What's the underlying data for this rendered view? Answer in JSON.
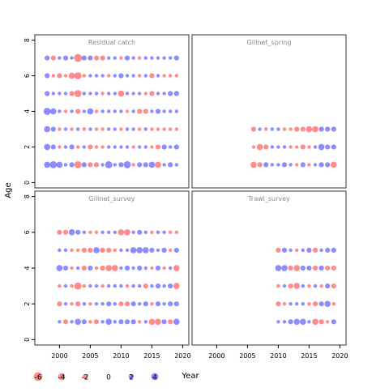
{
  "chart_data": {
    "type": "scatter",
    "xlabel": "Year",
    "ylabel": "Age",
    "xlim": [
      1996,
      2021
    ],
    "ylim": [
      -0.3,
      8.3
    ],
    "xticks": [
      "2000",
      "2005",
      "2010",
      "2015",
      "2020"
    ],
    "yticks": [
      "0",
      "2",
      "4",
      "6",
      "8"
    ],
    "colors": {
      "positive": "#4040ff",
      "negative": "#ff4040",
      "frame": "#333333",
      "panel_title": "#888888"
    },
    "legend": {
      "values": [
        -6,
        -4,
        -2,
        0,
        2,
        4
      ],
      "labels": [
        "-6",
        "-4",
        "-2",
        "0",
        "2",
        "4"
      ]
    },
    "panels": [
      {
        "title": "Residual catch",
        "years": [
          1998,
          1999,
          2000,
          2001,
          2002,
          2003,
          2004,
          2005,
          2006,
          2007,
          2008,
          2009,
          2010,
          2011,
          2012,
          2013,
          2014,
          2015,
          2016,
          2017,
          2018,
          2019
        ],
        "ages": [
          1,
          2,
          3,
          4,
          5,
          6,
          7
        ],
        "residuals": [
          [
            3,
            4,
            3,
            1,
            2,
            -4,
            2,
            -2,
            -2,
            1,
            4,
            1,
            2,
            4,
            -1,
            2,
            2,
            3,
            -3,
            1,
            2,
            1
          ],
          [
            3,
            2,
            -1,
            1,
            2,
            -1,
            1,
            -2,
            -1,
            -1,
            1,
            1,
            1,
            1,
            -1,
            1,
            1,
            -1,
            -2,
            2,
            1,
            2
          ],
          [
            3,
            2,
            -1,
            1,
            -1,
            1,
            -1,
            1,
            -1,
            -1,
            1,
            1,
            -1,
            1,
            1,
            -1,
            1,
            -1,
            -1,
            -1,
            -1,
            -1
          ],
          [
            4,
            3,
            1,
            -1,
            1,
            -2,
            1,
            3,
            -1,
            1,
            1,
            1,
            1,
            -1,
            1,
            -2,
            -2,
            1,
            2,
            1,
            1,
            1
          ],
          [
            2,
            1,
            1,
            1,
            -2,
            -4,
            1,
            1,
            1,
            -1,
            1,
            1,
            -3,
            1,
            1,
            1,
            -1,
            -2,
            1,
            1,
            2,
            2
          ],
          [
            2,
            -1,
            -2,
            -1,
            -3,
            -4,
            -1,
            1,
            1,
            1,
            -1,
            1,
            2,
            1,
            1,
            -1,
            1,
            -2,
            1,
            -1,
            -1,
            -1
          ],
          [
            2,
            -2,
            1,
            2,
            1,
            -5,
            2,
            2,
            -2,
            -2,
            1,
            1,
            -1,
            2,
            1,
            -1,
            1,
            1,
            1,
            1,
            1,
            2
          ]
        ]
      },
      {
        "title": "Gillnet_spring",
        "years": [
          2006,
          2007,
          2008,
          2009,
          2010,
          2011,
          2012,
          2013,
          2014,
          2015,
          2016,
          2017,
          2018,
          2019
        ],
        "ages": [
          1,
          2,
          3
        ],
        "residuals": [
          [
            -3,
            -2,
            2,
            1,
            1,
            2,
            1,
            -1,
            2,
            -1,
            1,
            2,
            2,
            -3
          ],
          [
            -1,
            -3,
            -2,
            1,
            1,
            1,
            -1,
            -1,
            -2,
            -1,
            1,
            3,
            2,
            2
          ],
          [
            -2,
            1,
            -1,
            1,
            1,
            -1,
            -1,
            -2,
            -2,
            -3,
            -3,
            2,
            2,
            2
          ]
        ]
      },
      {
        "title": "Gillnet_survey",
        "years": [
          2000,
          2001,
          2002,
          2003,
          2004,
          2005,
          2006,
          2007,
          2008,
          2009,
          2010,
          2011,
          2012,
          2013,
          2014,
          2015,
          2016,
          2017,
          2018,
          2019
        ],
        "ages": [
          1,
          2,
          3,
          4,
          5,
          6
        ],
        "residuals": [
          [
            1,
            -2,
            1,
            3,
            2,
            -1,
            -2,
            1,
            3,
            1,
            2,
            2,
            2,
            -1,
            1,
            -3,
            -3,
            2,
            -2,
            3
          ],
          [
            -2,
            1,
            -1,
            -2,
            1,
            -1,
            1,
            1,
            2,
            1,
            -2,
            -2,
            2,
            1,
            2,
            -1,
            2,
            1,
            2,
            2
          ],
          [
            -1,
            1,
            -1,
            -4,
            -1,
            1,
            1,
            -1,
            1,
            1,
            1,
            -1,
            1,
            1,
            -2,
            1,
            2,
            1,
            2,
            -3
          ],
          [
            3,
            2,
            -1,
            1,
            -2,
            2,
            -1,
            -2,
            -3,
            -3,
            1,
            2,
            1,
            2,
            1,
            -1,
            2,
            -1,
            1,
            -3
          ],
          [
            1,
            1,
            -1,
            -1,
            -2,
            -2,
            3,
            -2,
            -2,
            -1,
            1,
            1,
            3,
            3,
            3,
            2,
            1,
            2,
            -1,
            2
          ],
          [
            -2,
            -2,
            3,
            2,
            1,
            -1,
            -1,
            1,
            1,
            1,
            -3,
            -3,
            1,
            2,
            1,
            -1,
            1,
            1,
            -1,
            -1
          ]
        ]
      },
      {
        "title": "Trawl_survey",
        "years": [
          2010,
          2011,
          2012,
          2013,
          2014,
          2015,
          2016,
          2017,
          2018,
          2019
        ],
        "ages": [
          1,
          2,
          3,
          4,
          5
        ],
        "residuals": [
          [
            1,
            1,
            2,
            3,
            3,
            1,
            -3,
            -2,
            -1,
            2
          ],
          [
            -2,
            -1,
            1,
            1,
            1,
            -1,
            -2,
            2,
            3,
            -1
          ],
          [
            -1,
            1,
            -2,
            -3,
            1,
            -1,
            1,
            -1,
            2,
            -2
          ],
          [
            3,
            3,
            -2,
            -3,
            2,
            2,
            -2,
            2,
            -2,
            -2
          ],
          [
            -2,
            2,
            1,
            -1,
            1,
            2,
            -2,
            1,
            2,
            2
          ]
        ]
      }
    ]
  }
}
